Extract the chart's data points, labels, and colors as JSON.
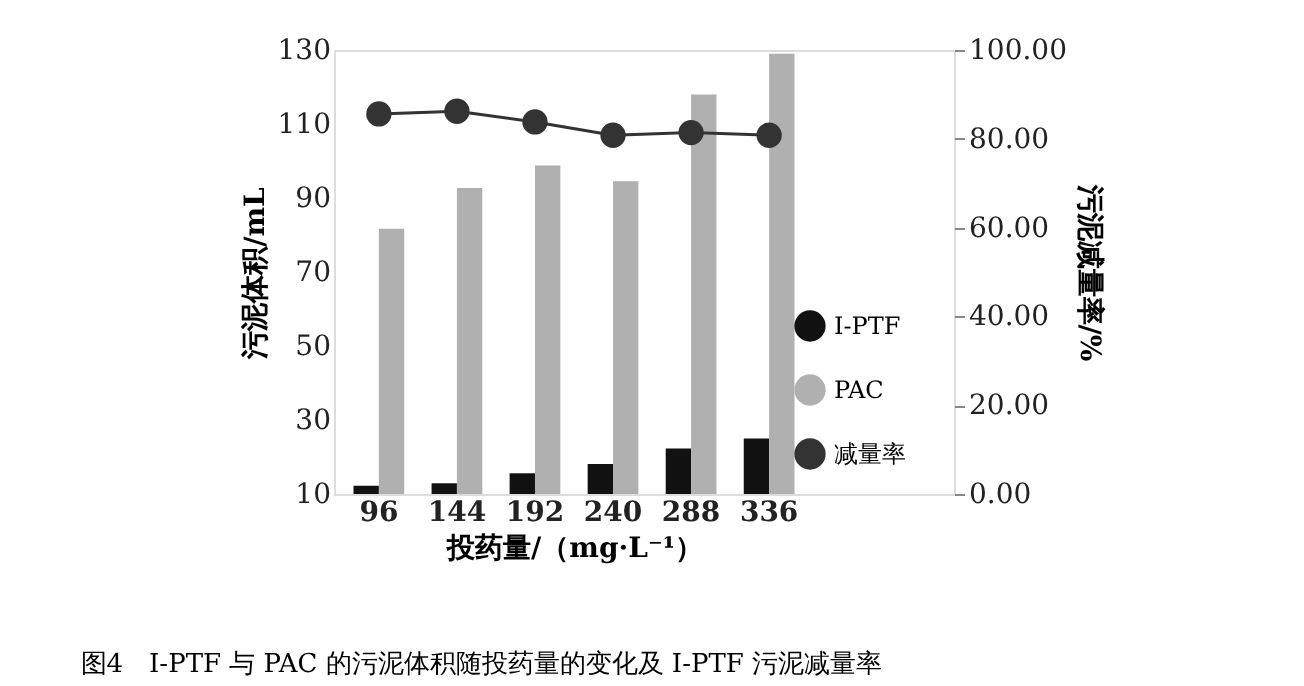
{
  "chart_data": {
    "type": "bar",
    "title": "图4　I-PTF 与 PAC 的污泥体积随投药量的变化及 I-PTF 污泥减量率",
    "xlabel": "投药量/（mg·L⁻¹）",
    "ylabel": "污泥体积/mL",
    "y2label": "污泥减量率/%",
    "categories": [
      "96",
      "144",
      "192",
      "240",
      "288",
      "336"
    ],
    "series": [
      {
        "name": "I-PTF",
        "color": "#111111",
        "values": [
          12.2,
          12.9,
          15.6,
          18.1,
          22.3,
          25
        ]
      },
      {
        "name": "PAC",
        "color": "#b0b0b0",
        "values": [
          81.7,
          92.7,
          98.8,
          94.5,
          118,
          129
        ]
      },
      {
        "name": "减量率",
        "color": "#333333",
        "type": "line",
        "axis": "y2",
        "values": [
          85.6,
          86.2,
          83.8,
          80.8,
          81.4,
          80.8
        ]
      }
    ],
    "ylim": [
      10,
      130
    ],
    "yticks": [
      10,
      30,
      50,
      70,
      90,
      110,
      130
    ],
    "y2lim": [
      0,
      100
    ],
    "y2ticks": [
      {
        "value": 0,
        "label": "0.00"
      },
      {
        "value": 20,
        "label": "20.00"
      },
      {
        "value": 40,
        "label": "40.00"
      },
      {
        "value": 60,
        "label": "60.00"
      },
      {
        "value": 80,
        "label": "80.00"
      },
      {
        "value": 100,
        "label": "100.00"
      }
    ],
    "marker": "circle",
    "grid": false,
    "legend": "right"
  }
}
